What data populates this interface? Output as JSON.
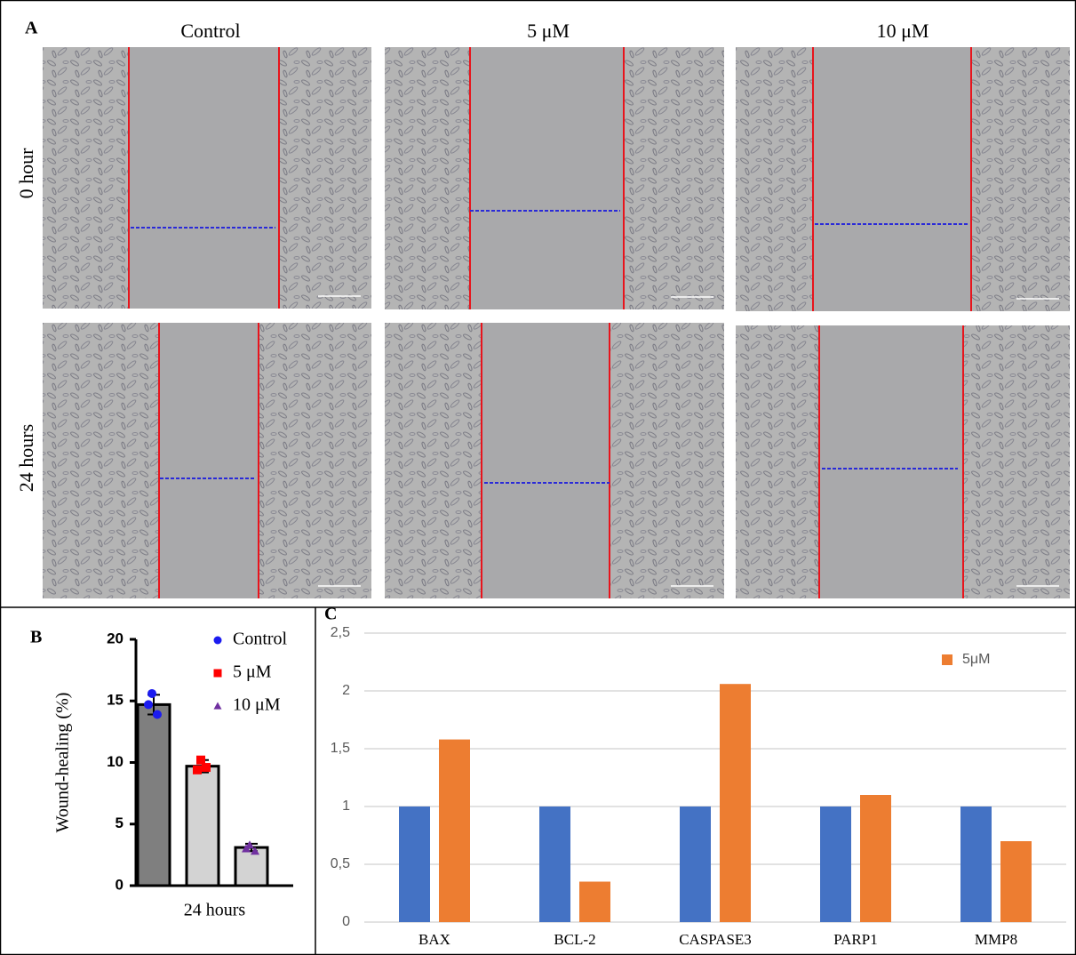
{
  "panel_a": {
    "label": "A",
    "columns": [
      "Control",
      "5 μM",
      "10 μM"
    ],
    "rows": [
      "0 hour",
      "24 hours"
    ]
  },
  "chart_data": [
    {
      "type": "bar",
      "panel_label": "B",
      "ylabel": "Wound-healing (%)",
      "categories": [
        "24 hours"
      ],
      "series": [
        {
          "name": "Control",
          "color": "#1c1cf0",
          "bar_color": "#7f7f7f",
          "marker": "circle",
          "values": [
            14.7
          ],
          "errors": [
            0.8
          ],
          "points": [
            15.6,
            14.7,
            13.9
          ]
        },
        {
          "name": "5 μM",
          "color": "#ff0000",
          "bar_color": "#d3d3d3",
          "marker": "square",
          "values": [
            9.7
          ],
          "errors": [
            0.5
          ],
          "points": [
            10.2,
            9.4,
            9.6
          ]
        },
        {
          "name": "10 μM",
          "color": "#7030a0",
          "bar_color": "#d3d3d3",
          "marker": "triangle",
          "values": [
            3.1
          ],
          "errors": [
            0.3
          ],
          "points": [
            3.3,
            3.0,
            2.8
          ]
        }
      ],
      "ylim": [
        0,
        20
      ],
      "yticks": [
        0,
        5,
        10,
        15,
        20
      ],
      "grid": false,
      "legend": "upper right"
    },
    {
      "type": "bar",
      "panel_label": "C",
      "categories": [
        "BAX",
        "BCL-2",
        "CASPASE3",
        "PARP1",
        "MMP8"
      ],
      "series": [
        {
          "color": "#4472c4",
          "values": [
            1,
            1,
            1,
            1,
            1
          ]
        },
        {
          "name": "5μM",
          "color": "#ed7d31",
          "values": [
            1.58,
            0.35,
            2.06,
            1.1,
            0.7
          ]
        }
      ],
      "ylim": [
        0,
        2.5
      ],
      "yticks": [
        0,
        {
          "value": 0.5,
          "label": "0,5"
        },
        1,
        {
          "value": 1.5,
          "label": "1,5"
        },
        2,
        {
          "value": 2.5,
          "label": "2,5"
        }
      ],
      "grid": true,
      "legend": "upper right"
    }
  ]
}
